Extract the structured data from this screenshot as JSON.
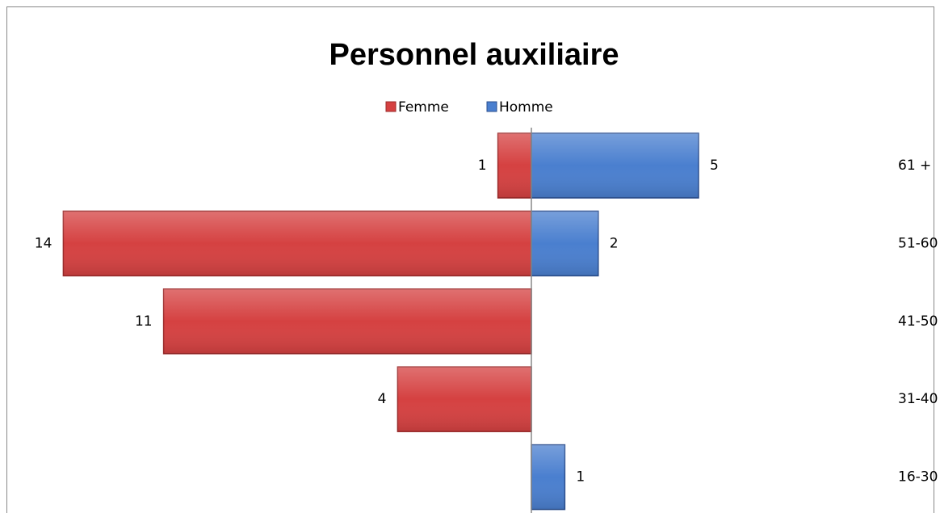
{
  "chart_data": {
    "type": "bar",
    "orientation": "horizontal-diverging",
    "title": "Personnel auxiliaire",
    "categories": [
      "61 +",
      "51-60",
      "41-50",
      "31-40",
      "16-30"
    ],
    "series": [
      {
        "name": "Femme",
        "color": "#d54141",
        "values": [
          1,
          14,
          11,
          4,
          null
        ]
      },
      {
        "name": "Homme",
        "color": "#4a7fcf",
        "values": [
          5,
          2,
          null,
          null,
          1
        ]
      }
    ],
    "legend": "top"
  }
}
